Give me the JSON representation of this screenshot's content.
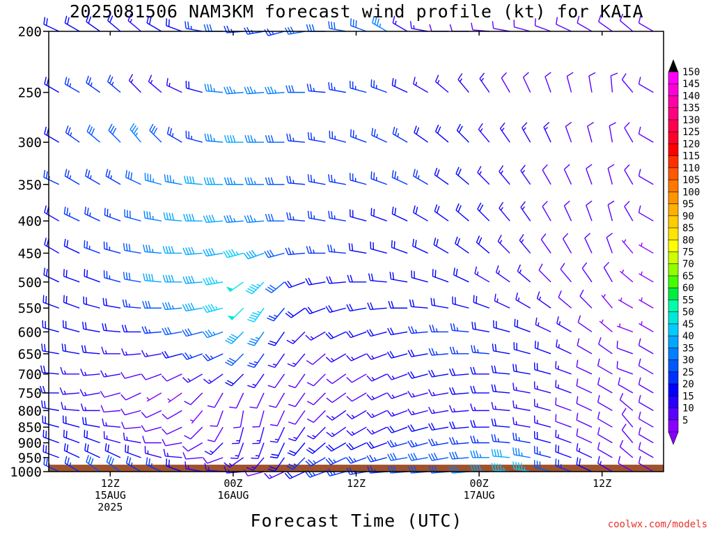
{
  "title": "2025081506 NAM3KM forecast wind profile (kt) for KAIA",
  "x_axis_title": "Forecast Time (UTC)",
  "credit": "coolwx.com/models",
  "chart_data": {
    "type": "wind_barbs",
    "title": "2025081506 NAM3KM forecast wind profile (kt) for KAIA",
    "xlabel": "Forecast Time (UTC)",
    "ylabel": "",
    "units": "kt",
    "y_scale": "log",
    "ylim": [
      1000,
      200
    ],
    "xlim_hours_from_run": [
      0,
      60
    ],
    "pressure_ticks": [
      200,
      250,
      300,
      350,
      400,
      450,
      500,
      550,
      600,
      650,
      700,
      750,
      800,
      850,
      900,
      950,
      1000
    ],
    "time_ticks": [
      {
        "hour": 6,
        "lines": [
          "12Z",
          "15AUG",
          "2025"
        ]
      },
      {
        "hour": 18,
        "lines": [
          "00Z",
          "16AUG"
        ]
      },
      {
        "hour": 30,
        "lines": [
          "12Z"
        ]
      },
      {
        "hour": 42,
        "lines": [
          "00Z",
          "17AUG"
        ]
      },
      {
        "hour": 54,
        "lines": [
          "12Z"
        ]
      }
    ],
    "colorbar": {
      "labels": [
        150,
        145,
        140,
        135,
        130,
        125,
        120,
        115,
        110,
        105,
        100,
        95,
        90,
        85,
        80,
        75,
        70,
        65,
        60,
        55,
        50,
        45,
        40,
        35,
        30,
        25,
        20,
        15,
        10,
        5
      ],
      "colors": [
        "#ff00ff",
        "#ff00d8",
        "#ff00a8",
        "#ff0080",
        "#ff0050",
        "#ff0028",
        "#ff0000",
        "#ff3000",
        "#ff5800",
        "#ff7800",
        "#ff9400",
        "#ffb000",
        "#ffcc00",
        "#ffe600",
        "#ffff00",
        "#ccff00",
        "#90ff00",
        "#44ff00",
        "#00ee40",
        "#00ffaa",
        "#00e8d8",
        "#00ccff",
        "#00a8ff",
        "#0080ff",
        "#0058ff",
        "#0030ff",
        "#0000ff",
        "#2800ff",
        "#5a00ff",
        "#8a00ff"
      ]
    },
    "terrain_color": "#a0522d",
    "surface_pressure": 975,
    "profiles": [
      {
        "hour": 1,
        "dir": [
          295,
          300,
          300,
          295,
          300,
          300,
          295,
          290,
          285,
          280,
          275,
          270,
          280,
          285,
          290,
          290,
          295
        ],
        "spd": [
          20,
          20,
          20,
          25,
          20,
          20,
          20,
          20,
          20,
          20,
          20,
          20,
          20,
          20,
          20,
          20,
          25
        ]
      },
      {
        "hour": 3,
        "dir": [
          300,
          300,
          305,
          300,
          295,
          295,
          290,
          290,
          285,
          280,
          270,
          265,
          275,
          285,
          290,
          295,
          300
        ],
        "spd": [
          20,
          25,
          25,
          25,
          25,
          20,
          20,
          20,
          20,
          20,
          15,
          15,
          15,
          20,
          20,
          20,
          25
        ]
      },
      {
        "hour": 5,
        "dir": [
          305,
          305,
          310,
          300,
          295,
          290,
          290,
          285,
          280,
          275,
          265,
          260,
          270,
          280,
          290,
          295,
          305
        ],
        "spd": [
          20,
          25,
          30,
          25,
          25,
          25,
          20,
          20,
          20,
          20,
          15,
          15,
          15,
          20,
          20,
          20,
          30
        ]
      },
      {
        "hour": 7,
        "dir": [
          310,
          310,
          315,
          300,
          290,
          285,
          285,
          280,
          275,
          270,
          260,
          255,
          265,
          275,
          285,
          295,
          305
        ],
        "spd": [
          20,
          25,
          30,
          25,
          25,
          25,
          25,
          20,
          20,
          15,
          15,
          10,
          10,
          15,
          15,
          20,
          30
        ]
      },
      {
        "hour": 9,
        "dir": [
          310,
          315,
          320,
          295,
          285,
          280,
          280,
          275,
          270,
          265,
          255,
          245,
          255,
          265,
          280,
          290,
          300
        ],
        "spd": [
          15,
          15,
          35,
          30,
          30,
          30,
          30,
          25,
          20,
          15,
          10,
          10,
          10,
          10,
          15,
          20,
          25
        ]
      },
      {
        "hour": 11,
        "dir": [
          300,
          310,
          315,
          285,
          280,
          275,
          275,
          270,
          265,
          260,
          250,
          240,
          245,
          255,
          270,
          285,
          295
        ],
        "spd": [
          20,
          15,
          30,
          35,
          35,
          35,
          40,
          30,
          25,
          15,
          10,
          5,
          10,
          10,
          10,
          15,
          25
        ]
      },
      {
        "hour": 13,
        "dir": [
          290,
          295,
          300,
          280,
          275,
          270,
          270,
          265,
          260,
          255,
          245,
          235,
          240,
          245,
          260,
          275,
          290
        ],
        "spd": [
          20,
          15,
          25,
          35,
          40,
          40,
          40,
          35,
          30,
          20,
          10,
          5,
          10,
          10,
          10,
          15,
          20
        ]
      },
      {
        "hour": 15,
        "dir": [
          280,
          285,
          285,
          275,
          270,
          265,
          265,
          260,
          255,
          250,
          240,
          225,
          220,
          225,
          240,
          265,
          280
        ],
        "spd": [
          25,
          20,
          25,
          40,
          40,
          40,
          40,
          40,
          30,
          25,
          15,
          10,
          5,
          10,
          10,
          10,
          15
        ]
      },
      {
        "hour": 17,
        "dir": [
          270,
          275,
          275,
          270,
          265,
          260,
          260,
          255,
          250,
          245,
          235,
          210,
          200,
          210,
          225,
          250,
          275
        ],
        "spd": [
          30,
          35,
          35,
          40,
          40,
          40,
          45,
          45,
          35,
          25,
          15,
          10,
          10,
          10,
          15,
          10,
          15
        ]
      },
      {
        "hour": 19,
        "dir": [
          265,
          265,
          270,
          270,
          265,
          255,
          235,
          225,
          225,
          225,
          225,
          205,
          190,
          195,
          200,
          235,
          265
        ],
        "spd": [
          25,
          35,
          40,
          35,
          35,
          45,
          50,
          50,
          40,
          30,
          20,
          10,
          10,
          15,
          15,
          15,
          15
        ]
      },
      {
        "hour": 21,
        "dir": [
          260,
          265,
          270,
          270,
          265,
          250,
          225,
          215,
          215,
          215,
          215,
          205,
          195,
          195,
          200,
          220,
          255
        ],
        "spd": [
          25,
          35,
          35,
          35,
          35,
          40,
          45,
          45,
          35,
          25,
          15,
          10,
          10,
          15,
          15,
          15,
          10
        ]
      },
      {
        "hour": 23,
        "dir": [
          255,
          265,
          270,
          270,
          270,
          255,
          230,
          220,
          215,
          215,
          215,
          210,
          205,
          205,
          205,
          215,
          245
        ],
        "spd": [
          25,
          35,
          30,
          30,
          30,
          30,
          30,
          25,
          20,
          15,
          10,
          10,
          10,
          15,
          20,
          20,
          15
        ]
      },
      {
        "hour": 25,
        "dir": [
          260,
          270,
          275,
          275,
          275,
          265,
          250,
          235,
          225,
          220,
          215,
          215,
          215,
          215,
          220,
          225,
          245
        ],
        "spd": [
          30,
          30,
          25,
          25,
          25,
          25,
          20,
          20,
          15,
          15,
          10,
          10,
          10,
          15,
          20,
          25,
          20
        ]
      },
      {
        "hour": 27,
        "dir": [
          270,
          275,
          280,
          280,
          280,
          270,
          260,
          250,
          240,
          230,
          225,
          225,
          225,
          225,
          230,
          240,
          250
        ],
        "spd": [
          30,
          25,
          25,
          25,
          25,
          25,
          20,
          20,
          15,
          10,
          10,
          10,
          10,
          15,
          20,
          25,
          25
        ]
      },
      {
        "hour": 29,
        "dir": [
          280,
          280,
          285,
          280,
          280,
          275,
          265,
          255,
          245,
          240,
          235,
          235,
          235,
          235,
          240,
          245,
          255
        ],
        "spd": [
          30,
          25,
          25,
          25,
          25,
          25,
          20,
          20,
          20,
          15,
          10,
          10,
          15,
          15,
          20,
          25,
          25
        ]
      },
      {
        "hour": 31,
        "dir": [
          290,
          285,
          290,
          285,
          285,
          280,
          270,
          260,
          250,
          245,
          240,
          240,
          240,
          240,
          245,
          250,
          260
        ],
        "spd": [
          30,
          25,
          25,
          25,
          20,
          20,
          20,
          20,
          20,
          15,
          10,
          10,
          15,
          15,
          20,
          25,
          25
        ]
      },
      {
        "hour": 33,
        "dir": [
          300,
          290,
          295,
          290,
          290,
          285,
          275,
          265,
          255,
          250,
          245,
          245,
          245,
          245,
          250,
          255,
          265
        ],
        "spd": [
          35,
          25,
          25,
          25,
          20,
          20,
          20,
          20,
          20,
          15,
          15,
          15,
          15,
          15,
          20,
          25,
          25
        ]
      },
      {
        "hour": 35,
        "dir": [
          300,
          295,
          300,
          295,
          295,
          290,
          280,
          270,
          260,
          255,
          250,
          250,
          250,
          250,
          255,
          260,
          265
        ],
        "spd": [
          15,
          20,
          25,
          25,
          20,
          20,
          20,
          20,
          20,
          20,
          15,
          15,
          15,
          20,
          25,
          30,
          30
        ]
      },
      {
        "hour": 37,
        "dir": [
          280,
          300,
          305,
          300,
          300,
          295,
          285,
          275,
          265,
          260,
          255,
          255,
          255,
          255,
          255,
          260,
          265
        ],
        "spd": [
          15,
          15,
          20,
          25,
          20,
          20,
          20,
          20,
          25,
          20,
          20,
          15,
          15,
          20,
          25,
          30,
          30
        ]
      },
      {
        "hour": 39,
        "dir": [
          270,
          310,
          310,
          305,
          305,
          300,
          290,
          280,
          270,
          265,
          260,
          260,
          260,
          260,
          260,
          260,
          265
        ],
        "spd": [
          10,
          15,
          20,
          20,
          20,
          20,
          20,
          20,
          25,
          25,
          20,
          15,
          15,
          20,
          25,
          30,
          30
        ]
      },
      {
        "hour": 41,
        "dir": [
          270,
          320,
          315,
          310,
          310,
          305,
          295,
          285,
          275,
          270,
          265,
          265,
          265,
          265,
          265,
          265,
          265
        ],
        "spd": [
          10,
          15,
          20,
          20,
          20,
          20,
          20,
          20,
          25,
          25,
          20,
          20,
          15,
          20,
          25,
          30,
          35
        ]
      },
      {
        "hour": 43,
        "dir": [
          275,
          325,
          320,
          315,
          315,
          310,
          300,
          290,
          280,
          275,
          270,
          270,
          270,
          270,
          270,
          270,
          270
        ],
        "spd": [
          10,
          15,
          15,
          15,
          20,
          20,
          15,
          20,
          20,
          25,
          20,
          20,
          15,
          20,
          25,
          35,
          40
        ]
      },
      {
        "hour": 45,
        "dir": [
          280,
          330,
          325,
          320,
          320,
          315,
          305,
          295,
          285,
          280,
          275,
          275,
          275,
          275,
          275,
          275,
          275
        ],
        "spd": [
          10,
          10,
          15,
          15,
          15,
          15,
          15,
          15,
          20,
          20,
          20,
          20,
          15,
          20,
          25,
          40,
          45
        ]
      },
      {
        "hour": 47,
        "dir": [
          285,
          335,
          330,
          325,
          325,
          320,
          310,
          300,
          290,
          285,
          280,
          280,
          280,
          280,
          280,
          280,
          280
        ],
        "spd": [
          10,
          10,
          15,
          15,
          15,
          15,
          15,
          15,
          20,
          20,
          20,
          15,
          15,
          15,
          25,
          35,
          45
        ]
      },
      {
        "hour": 49,
        "dir": [
          290,
          340,
          335,
          330,
          330,
          325,
          315,
          305,
          295,
          290,
          285,
          285,
          285,
          285,
          285,
          285,
          285
        ],
        "spd": [
          10,
          10,
          15,
          10,
          10,
          10,
          10,
          15,
          15,
          20,
          20,
          15,
          15,
          15,
          20,
          25,
          30
        ]
      },
      {
        "hour": 51,
        "dir": [
          295,
          345,
          340,
          335,
          335,
          330,
          320,
          310,
          300,
          295,
          290,
          290,
          290,
          290,
          290,
          290,
          290
        ],
        "spd": [
          10,
          10,
          10,
          10,
          10,
          10,
          10,
          10,
          15,
          15,
          15,
          15,
          10,
          10,
          15,
          20,
          25
        ]
      },
      {
        "hour": 53,
        "dir": [
          300,
          350,
          345,
          340,
          340,
          335,
          325,
          315,
          305,
          300,
          295,
          295,
          295,
          295,
          295,
          295,
          295
        ],
        "spd": [
          10,
          10,
          10,
          10,
          10,
          10,
          10,
          10,
          10,
          10,
          10,
          10,
          10,
          10,
          10,
          15,
          20
        ]
      },
      {
        "hour": 55,
        "dir": [
          305,
          355,
          350,
          345,
          345,
          340,
          330,
          320,
          310,
          305,
          300,
          300,
          300,
          300,
          300,
          300,
          300
        ],
        "spd": [
          10,
          10,
          10,
          10,
          10,
          10,
          10,
          5,
          5,
          10,
          10,
          10,
          10,
          10,
          10,
          10,
          15
        ]
      },
      {
        "hour": 57,
        "dir": [
          310,
          320,
          330,
          330,
          330,
          320,
          310,
          300,
          290,
          290,
          290,
          300,
          310,
          320,
          320,
          310,
          300
        ],
        "spd": [
          10,
          10,
          10,
          10,
          10,
          5,
          5,
          5,
          5,
          10,
          10,
          10,
          10,
          10,
          10,
          10,
          10
        ]
      },
      {
        "hour": 59,
        "dir": [
          300,
          300,
          300,
          300,
          300,
          300,
          300,
          300,
          300,
          300,
          300,
          300,
          300,
          300,
          300,
          300,
          300
        ],
        "spd": [
          10,
          10,
          10,
          10,
          10,
          5,
          5,
          5,
          5,
          10,
          10,
          10,
          10,
          10,
          10,
          10,
          10
        ]
      }
    ]
  }
}
